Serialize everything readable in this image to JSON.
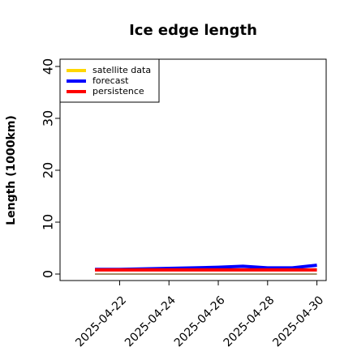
{
  "chart_data": {
    "type": "line",
    "title": "Ice edge length",
    "ylabel": "Length (1000km)",
    "x": [
      "2025-04-21",
      "2025-04-22",
      "2025-04-23",
      "2025-04-24",
      "2025-04-25",
      "2025-04-26",
      "2025-04-27",
      "2025-04-28",
      "2025-04-29",
      "2025-04-30"
    ],
    "series": [
      {
        "name": "satellite data",
        "color": "#ffd700",
        "values": [
          0,
          0,
          0,
          0,
          0,
          0,
          0,
          0,
          0,
          0
        ]
      },
      {
        "name": "forecast",
        "color": "#0000ff",
        "values": [
          0.9,
          0.9,
          1.0,
          1.1,
          1.2,
          1.3,
          1.5,
          1.2,
          1.2,
          1.7
        ]
      },
      {
        "name": "persistence",
        "color": "#ff0000",
        "values": [
          0.8,
          0.8,
          0.8,
          0.8,
          0.8,
          0.8,
          0.8,
          0.8,
          0.8,
          0.8
        ]
      }
    ],
    "xlim": [
      "2025-04-19T14:00",
      "2025-04-30T09:00"
    ],
    "xticks": [
      "2025-04-22",
      "2025-04-24",
      "2025-04-26",
      "2025-04-28",
      "2025-04-30"
    ],
    "xtick_colors": [
      "#228b22",
      "#000000",
      "#000000",
      "#000000",
      "#000000"
    ],
    "ylim": [
      -1.25,
      41.4
    ],
    "yticks": [
      0,
      10,
      20,
      30,
      40
    ],
    "legend": "upper left"
  }
}
